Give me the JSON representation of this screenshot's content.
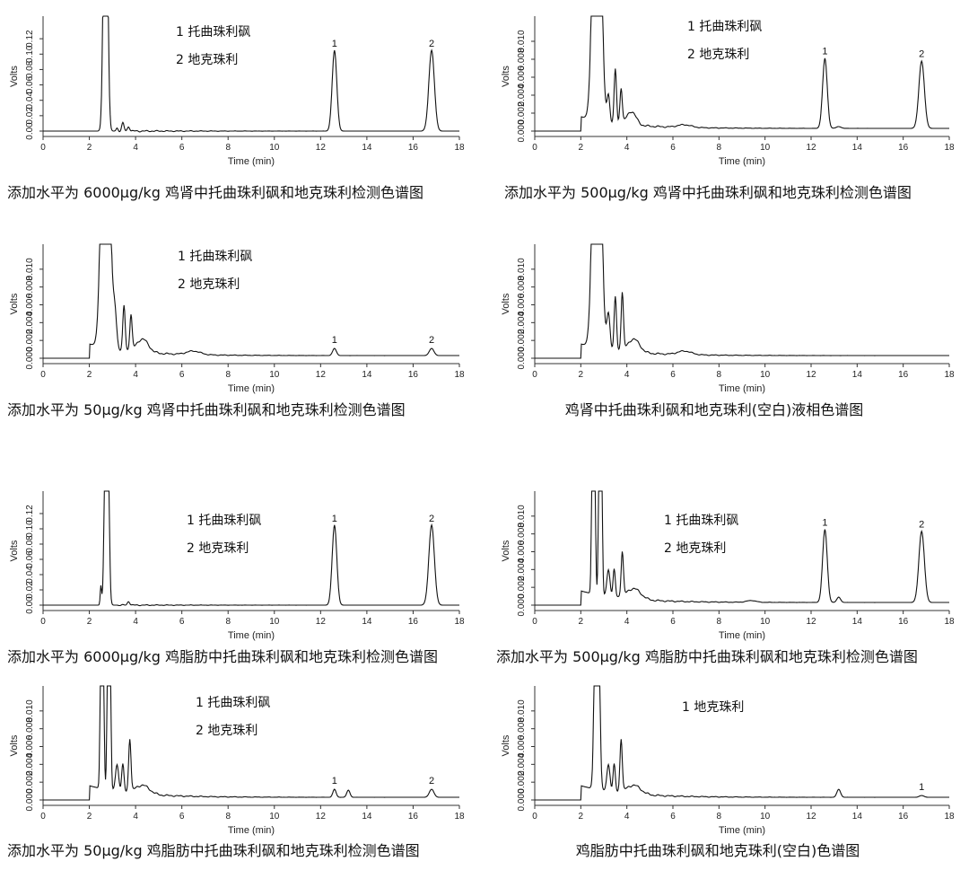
{
  "chart_data": [
    {
      "type": "line",
      "caption": "添加水平为 6000μg/kg 鸡肾中托曲珠利砜和地克珠利检测色谱图",
      "xlabel": "Time (min)",
      "ylabel": "Volts",
      "xlim": [
        0,
        18
      ],
      "ylim": [
        0,
        0.14
      ],
      "xticks": [
        "0",
        "2",
        "4",
        "6",
        "8",
        "10",
        "12",
        "14",
        "16",
        "18"
      ],
      "yticks": [
        "0.00",
        "0.02",
        "0.04",
        "0.06",
        "0.08",
        "0.10",
        "0.12"
      ],
      "legend": [
        "1  托曲珠利砜",
        "2  地克珠利"
      ],
      "peak_labels": [
        {
          "x": 12.6,
          "text": "1"
        },
        {
          "x": 16.8,
          "text": "2"
        }
      ],
      "series": [
        {
          "peaks": [
            [
              2.7,
              0.5,
              0.08
            ],
            [
              3.2,
              0.004,
              0.04
            ],
            [
              3.45,
              0.01,
              0.05
            ],
            [
              3.7,
              0.006,
              0.05
            ],
            [
              12.6,
              0.105,
              0.1
            ],
            [
              16.8,
              0.105,
              0.12
            ]
          ],
          "noise": 0.0015
        }
      ]
    },
    {
      "type": "line",
      "caption": "添加水平为 500μg/kg 鸡肾中托曲珠利砜和地克珠利检测色谱图",
      "xlabel": "Time (min)",
      "ylabel": "Volts",
      "xlim": [
        0,
        18
      ],
      "ylim": [
        0,
        0.012
      ],
      "xticks": [
        "0",
        "2",
        "4",
        "6",
        "8",
        "10",
        "12",
        "14",
        "16",
        "18"
      ],
      "yticks": [
        "0.000",
        "0.002",
        "0.004",
        "0.006",
        "0.008",
        "0.010"
      ],
      "legend": [
        "1  托曲珠利砜",
        "2  地克珠利"
      ],
      "peak_labels": [
        {
          "x": 12.6,
          "text": "1"
        },
        {
          "x": 16.8,
          "text": "2"
        }
      ],
      "series": [
        {
          "peaks": [
            [
              2.7,
              0.05,
              0.15
            ],
            [
              3.2,
              0.003,
              0.06
            ],
            [
              3.5,
              0.006,
              0.05
            ],
            [
              3.75,
              0.004,
              0.05
            ],
            [
              4.2,
              0.0015,
              0.2
            ],
            [
              6.5,
              0.0003,
              0.3
            ],
            [
              13.2,
              0.0002,
              0.1
            ],
            [
              12.6,
              0.0078,
              0.1
            ],
            [
              16.8,
              0.0075,
              0.12
            ]
          ],
          "noise": 0.0002,
          "baseline": 0.0003
        }
      ]
    },
    {
      "type": "line",
      "caption": "添加水平为 50μg/kg 鸡肾中托曲珠利砜和地克珠利检测色谱图",
      "xlabel": "Time (min)",
      "ylabel": "Volts",
      "xlim": [
        0,
        18
      ],
      "ylim": [
        0,
        0.012
      ],
      "xticks": [
        "0",
        "2",
        "4",
        "6",
        "8",
        "10",
        "12",
        "14",
        "16",
        "18"
      ],
      "yticks": [
        "0.000",
        "0.002",
        "0.004",
        "0.006",
        "0.008",
        "0.010"
      ],
      "legend": [
        "1  托曲珠利砜",
        "2  地克珠利"
      ],
      "peak_labels": [
        {
          "x": 12.6,
          "text": "1"
        },
        {
          "x": 16.8,
          "text": "2"
        }
      ],
      "series": [
        {
          "peaks": [
            [
              2.7,
              0.05,
              0.15
            ],
            [
              3.1,
              0.004,
              0.08
            ],
            [
              3.5,
              0.005,
              0.05
            ],
            [
              3.8,
              0.004,
              0.05
            ],
            [
              4.3,
              0.0015,
              0.25
            ],
            [
              6.5,
              0.0004,
              0.3
            ],
            [
              12.6,
              0.0008,
              0.08
            ],
            [
              16.8,
              0.0008,
              0.1
            ]
          ],
          "noise": 0.0002,
          "baseline": 0.0003
        }
      ]
    },
    {
      "type": "line",
      "caption": "鸡肾中托曲珠利砜和地克珠利(空白)液相色谱图",
      "xlabel": "Time (min)",
      "ylabel": "Volts",
      "xlim": [
        0,
        18
      ],
      "ylim": [
        0,
        0.012
      ],
      "xticks": [
        "0",
        "2",
        "4",
        "6",
        "8",
        "10",
        "12",
        "14",
        "16",
        "18"
      ],
      "yticks": [
        "0.000",
        "0.002",
        "0.004",
        "0.006",
        "0.008",
        "0.010"
      ],
      "legend": [],
      "peak_labels": [],
      "series": [
        {
          "peaks": [
            [
              2.7,
              0.05,
              0.15
            ],
            [
              3.2,
              0.004,
              0.07
            ],
            [
              3.5,
              0.006,
              0.05
            ],
            [
              3.8,
              0.0065,
              0.05
            ],
            [
              4.3,
              0.0015,
              0.25
            ],
            [
              6.5,
              0.0004,
              0.3
            ]
          ],
          "noise": 0.0002,
          "baseline": 0.0003
        }
      ]
    },
    {
      "type": "line",
      "caption": "添加水平为 6000μg/kg 鸡脂肪中托曲珠利砜和地克珠利检测色谱图",
      "xlabel": "Time (min)",
      "ylabel": "Volts",
      "xlim": [
        0,
        18
      ],
      "ylim": [
        0,
        0.14
      ],
      "xticks": [
        "0",
        "2",
        "4",
        "6",
        "8",
        "10",
        "12",
        "14",
        "16",
        "18"
      ],
      "yticks": [
        "0.00",
        "0.02",
        "0.04",
        "0.06",
        "0.08",
        "0.10",
        "0.12"
      ],
      "legend": [
        "1  托曲珠利砜",
        "2  地克珠利"
      ],
      "peak_labels": [
        {
          "x": 12.6,
          "text": "1"
        },
        {
          "x": 16.8,
          "text": "2"
        }
      ],
      "series": [
        {
          "peaks": [
            [
              2.5,
              0.025,
              0.03
            ],
            [
              2.75,
              0.5,
              0.07
            ],
            [
              3.7,
              0.005,
              0.05
            ],
            [
              12.6,
              0.105,
              0.1
            ],
            [
              16.8,
              0.105,
              0.12
            ]
          ],
          "noise": 0.001
        }
      ]
    },
    {
      "type": "line",
      "caption": "添加水平为 500μg/kg 鸡脂肪中托曲珠利砜和地克珠利检测色谱图",
      "xlabel": "Time (min)",
      "ylabel": "Volts",
      "xlim": [
        0,
        18
      ],
      "ylim": [
        0,
        0.012
      ],
      "xticks": [
        "0",
        "2",
        "4",
        "6",
        "8",
        "10",
        "12",
        "14",
        "16",
        "18"
      ],
      "yticks": [
        "0.000",
        "0.002",
        "0.004",
        "0.006",
        "0.008",
        "0.010"
      ],
      "legend": [
        "1  托曲珠利砜",
        "2  地克珠利"
      ],
      "peak_labels": [
        {
          "x": 12.6,
          "text": "1"
        },
        {
          "x": 16.8,
          "text": "2"
        }
      ],
      "series": [
        {
          "peaks": [
            [
              2.55,
              0.05,
              0.05
            ],
            [
              2.85,
              0.05,
              0.05
            ],
            [
              3.2,
              0.003,
              0.07
            ],
            [
              3.45,
              0.003,
              0.05
            ],
            [
              3.8,
              0.005,
              0.05
            ],
            [
              4.3,
              0.0012,
              0.3
            ],
            [
              9.4,
              0.0002,
              0.2
            ],
            [
              13.2,
              0.0006,
              0.08
            ],
            [
              12.6,
              0.0082,
              0.1
            ],
            [
              16.8,
              0.008,
              0.12
            ]
          ],
          "noise": 0.0002,
          "baseline": 0.0003
        }
      ]
    },
    {
      "type": "line",
      "caption": "添加水平为 50μg/kg 鸡脂肪中托曲珠利砜和地克珠利检测色谱图",
      "xlabel": "Time (min)",
      "ylabel": "Volts",
      "xlim": [
        0,
        18
      ],
      "ylim": [
        0,
        0.012
      ],
      "xticks": [
        "0",
        "2",
        "4",
        "6",
        "8",
        "10",
        "12",
        "14",
        "16",
        "18"
      ],
      "yticks": [
        "0.000",
        "0.002",
        "0.004",
        "0.006",
        "0.008",
        "0.010"
      ],
      "legend": [
        "1  托曲珠利砜",
        "2  地克珠利"
      ],
      "peak_labels": [
        {
          "x": 12.6,
          "text": "1"
        },
        {
          "x": 16.8,
          "text": "2"
        }
      ],
      "series": [
        {
          "peaks": [
            [
              2.55,
              0.05,
              0.05
            ],
            [
              2.85,
              0.05,
              0.05
            ],
            [
              3.2,
              0.003,
              0.07
            ],
            [
              3.45,
              0.003,
              0.05
            ],
            [
              3.75,
              0.006,
              0.05
            ],
            [
              4.3,
              0.001,
              0.3
            ],
            [
              12.6,
              0.0009,
              0.07
            ],
            [
              13.2,
              0.0008,
              0.07
            ],
            [
              16.8,
              0.0009,
              0.1
            ]
          ],
          "noise": 0.0002,
          "baseline": 0.0003
        }
      ]
    },
    {
      "type": "line",
      "caption": "鸡脂肪中托曲珠利砜和地克珠利(空白)色谱图",
      "xlabel": "Time (min)",
      "ylabel": "Volts",
      "xlim": [
        0,
        18
      ],
      "ylim": [
        0,
        0.012
      ],
      "xticks": [
        "0",
        "2",
        "4",
        "6",
        "8",
        "10",
        "12",
        "14",
        "16",
        "18"
      ],
      "yticks": [
        "0.000",
        "0.002",
        "0.004",
        "0.006",
        "0.008",
        "0.010"
      ],
      "legend": [
        "1 地克珠利"
      ],
      "peak_labels": [
        {
          "x": 16.8,
          "text": "1"
        }
      ],
      "series": [
        {
          "peaks": [
            [
              2.7,
              0.05,
              0.08
            ],
            [
              3.2,
              0.003,
              0.07
            ],
            [
              3.45,
              0.003,
              0.05
            ],
            [
              3.75,
              0.006,
              0.05
            ],
            [
              4.3,
              0.001,
              0.3
            ],
            [
              13.2,
              0.0009,
              0.08
            ],
            [
              16.8,
              0.0002,
              0.1
            ]
          ],
          "noise": 0.0002,
          "baseline": 0.0003
        }
      ]
    }
  ]
}
